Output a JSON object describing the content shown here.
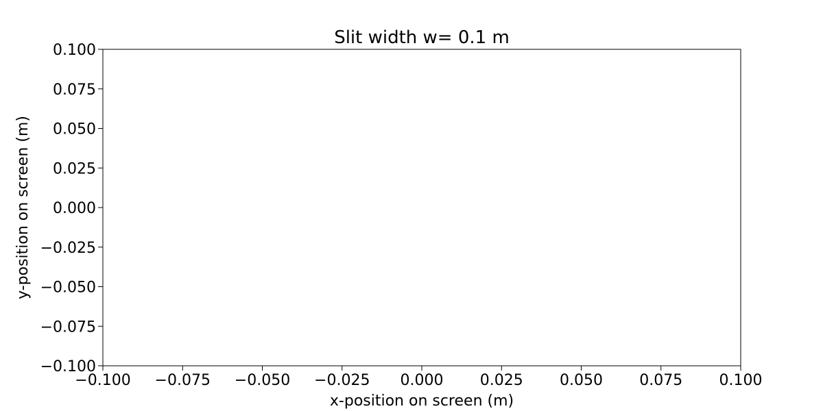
{
  "chart_data": {
    "type": "scatter",
    "title": "Slit width w= 0.1 m",
    "xlabel": "x-position on screen (m)",
    "ylabel": "y-position on screen (m)",
    "xlim": [
      -0.1,
      0.1
    ],
    "ylim": [
      -0.1,
      0.1
    ],
    "x_ticks": [
      -0.1,
      -0.075,
      -0.05,
      -0.025,
      0.0,
      0.025,
      0.05,
      0.075,
      0.1
    ],
    "y_ticks": [
      -0.1,
      -0.075,
      -0.05,
      -0.025,
      0.0,
      0.025,
      0.05,
      0.075,
      0.1
    ],
    "x_tick_labels": [
      "−0.100",
      "−0.075",
      "−0.050",
      "−0.025",
      "0.000",
      "0.025",
      "0.050",
      "0.075",
      "0.100"
    ],
    "y_tick_labels": [
      "−0.100",
      "−0.075",
      "−0.050",
      "−0.025",
      "0.000",
      "0.025",
      "0.050",
      "0.075",
      "0.100"
    ],
    "grid": false,
    "series": [],
    "colors": {
      "axes": "#000000",
      "background": "#ffffff"
    }
  }
}
